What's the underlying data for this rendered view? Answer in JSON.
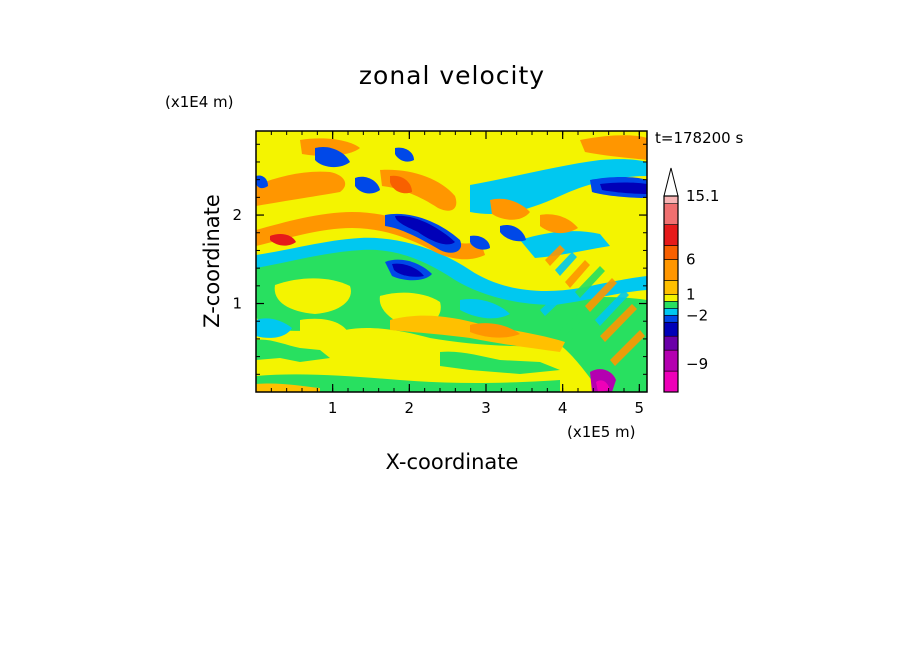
{
  "chart_data": {
    "type": "heatmap",
    "title": "zonal velocity",
    "time_label": "t=178200 s",
    "xlabel": "X-coordinate",
    "ylabel": "Z-coordinate",
    "x_unit": "(x1E5 m)",
    "y_unit": "(x1E4 m)",
    "xlim": [
      0,
      5.1
    ],
    "ylim": [
      0,
      2.95
    ],
    "x_ticks": [
      "1",
      "2",
      "3",
      "4",
      "5"
    ],
    "y_ticks": [
      "1",
      "2"
    ],
    "x_tick_values": [
      1,
      2,
      3,
      4,
      5
    ],
    "y_tick_values": [
      1,
      2
    ],
    "colorbar": {
      "labels": [
        {
          "text": "15.1",
          "value": 15.1
        },
        {
          "text": "6",
          "value": 6
        },
        {
          "text": "1",
          "value": 1
        },
        {
          "text": "−2",
          "value": -2
        },
        {
          "text": "−9",
          "value": -9
        }
      ],
      "levels": [
        {
          "color": "#ee00b8",
          "value": -13
        },
        {
          "color": "#b400b0",
          "value": -10
        },
        {
          "color": "#6a00a8",
          "value": -7
        },
        {
          "color": "#0000b8",
          "value": -5
        },
        {
          "color": "#0048e8",
          "value": -3
        },
        {
          "color": "#00c8f0",
          "value": -2
        },
        {
          "color": "#28e060",
          "value": -1
        },
        {
          "color": "#f4f400",
          "value": 0
        },
        {
          "color": "#ffc000",
          "value": 1
        },
        {
          "color": "#ff9600",
          "value": 3
        },
        {
          "color": "#f86000",
          "value": 6
        },
        {
          "color": "#e61a1a",
          "value": 8
        },
        {
          "color": "#f07070",
          "value": 11
        },
        {
          "color": "#f8b4b4",
          "value": 14
        },
        {
          "color": "#ffffff",
          "value": 15.1
        }
      ]
    },
    "field_description": "contour-filled zonal velocity field, wave patterns over topography"
  }
}
